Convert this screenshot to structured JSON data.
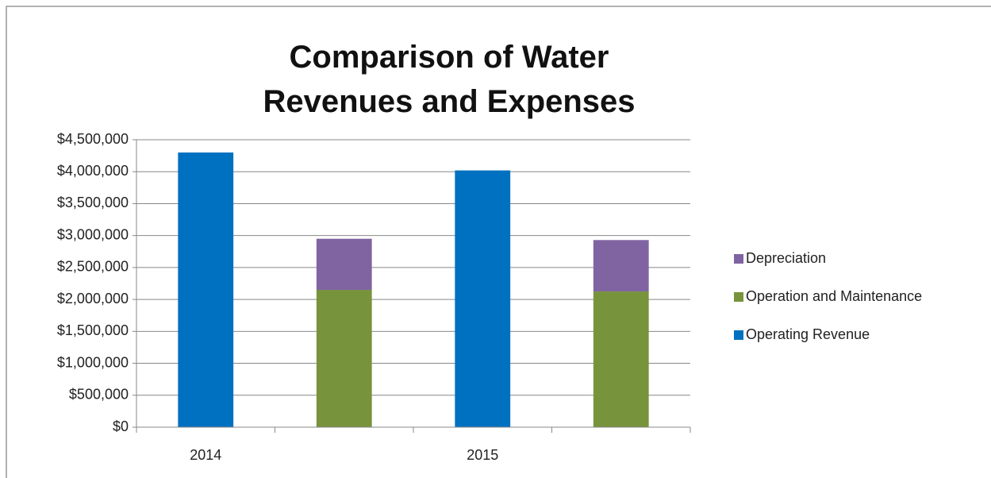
{
  "chart_data": {
    "type": "stacked_bar",
    "title": "Comparison of Water Revenues and Expenses",
    "categories": [
      "2014",
      null,
      "2015",
      null
    ],
    "series": [
      {
        "name": "Operating Revenue",
        "color": "#0070c0",
        "values": [
          4300000,
          null,
          4020000,
          null
        ]
      },
      {
        "name": "Operation and Maintenance",
        "color": "#77933c",
        "values": [
          null,
          2150000,
          null,
          2125000
        ]
      },
      {
        "name": "Depreciation",
        "color": "#8064a2",
        "values": [
          null,
          800000,
          null,
          805000
        ]
      }
    ],
    "ylim": [
      0,
      4500000
    ],
    "yticks": [
      {
        "value": 0,
        "label": "$0"
      },
      {
        "value": 500000,
        "label": "$500,000"
      },
      {
        "value": 1000000,
        "label": "$1,000,000"
      },
      {
        "value": 1500000,
        "label": "$1,500,000"
      },
      {
        "value": 2000000,
        "label": "$2,000,000"
      },
      {
        "value": 2500000,
        "label": "$2,500,000"
      },
      {
        "value": 3000000,
        "label": "$3,000,000"
      },
      {
        "value": 3500000,
        "label": "$3,500,000"
      },
      {
        "value": 4000000,
        "label": "$4,000,000"
      },
      {
        "value": 4500000,
        "label": "$4,500,000"
      }
    ],
    "grid": true,
    "legend": "right"
  }
}
